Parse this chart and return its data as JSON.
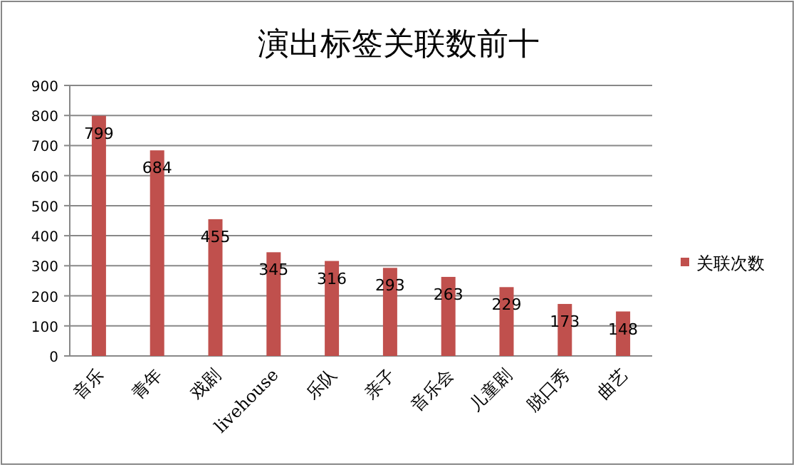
{
  "chart_data": {
    "type": "bar",
    "title": "演出标签关联数前十",
    "categories": [
      "音乐",
      "青年",
      "戏剧",
      "livehouse",
      "乐队",
      "亲子",
      "音乐会",
      "儿童剧",
      "脱口秀",
      "曲艺"
    ],
    "series": [
      {
        "name": "关联次数",
        "color": "#c0504d",
        "values": [
          799,
          684,
          455,
          345,
          316,
          293,
          263,
          229,
          173,
          148
        ]
      }
    ],
    "ylim": [
      0,
      900
    ],
    "yticks": [
      0,
      100,
      200,
      300,
      400,
      500,
      600,
      700,
      800,
      900
    ],
    "grid": "y",
    "legend": "right",
    "data_labels": true
  }
}
